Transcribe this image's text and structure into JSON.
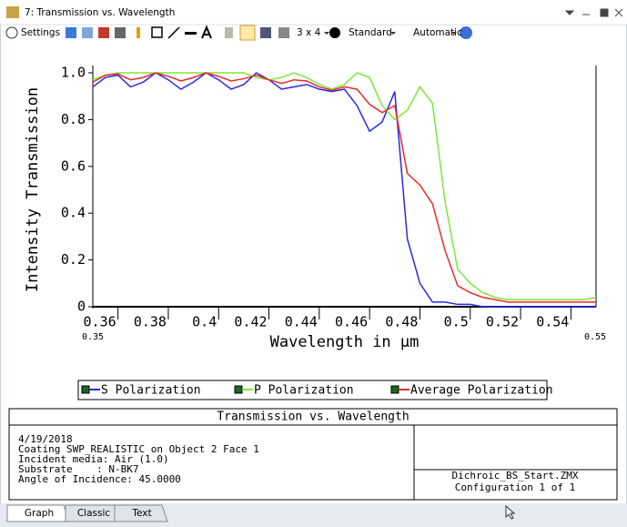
{
  "window": {
    "title": "7: Transmission vs. Wavelength"
  },
  "toolbar": {
    "settings": "Settings",
    "layout": "3 x 4",
    "style": "Standard",
    "scale": "Automatic"
  },
  "chart_data": {
    "type": "line",
    "title": "Transmission vs. Wavelength",
    "x_label": "Wavelength in µm",
    "y_label": "Intensity Transmission",
    "x": [
      0.35,
      0.355,
      0.36,
      0.365,
      0.37,
      0.375,
      0.38,
      0.385,
      0.39,
      0.395,
      0.4,
      0.405,
      0.41,
      0.415,
      0.42,
      0.425,
      0.43,
      0.435,
      0.44,
      0.445,
      0.45,
      0.455,
      0.46,
      0.465,
      0.47,
      0.475,
      0.48,
      0.485,
      0.49,
      0.495,
      0.5,
      0.505,
      0.51,
      0.515,
      0.52,
      0.525,
      0.53,
      0.535,
      0.54,
      0.545,
      0.55
    ],
    "series": [
      {
        "name": "S Polarization",
        "color": "#2a2ae8",
        "values": [
          0.94,
          0.98,
          0.99,
          0.94,
          0.96,
          1.0,
          0.97,
          0.93,
          0.96,
          1.0,
          0.97,
          0.93,
          0.95,
          1.0,
          0.97,
          0.93,
          0.94,
          0.95,
          0.93,
          0.92,
          0.93,
          0.86,
          0.75,
          0.79,
          0.92,
          0.29,
          0.1,
          0.02,
          0.02,
          0.01,
          0.01,
          0,
          0,
          0,
          0,
          0,
          0,
          0,
          0,
          0,
          0
        ]
      },
      {
        "name": "P Polarization",
        "color": "#7be83a",
        "values": [
          0.97,
          0.99,
          1.0,
          1.0,
          1.0,
          1.0,
          1.0,
          1.0,
          1.0,
          1.0,
          1.0,
          1.0,
          1.0,
          0.98,
          0.97,
          0.98,
          1.0,
          0.98,
          0.95,
          0.93,
          0.95,
          1.0,
          0.98,
          0.86,
          0.8,
          0.84,
          0.94,
          0.87,
          0.45,
          0.16,
          0.1,
          0.06,
          0.04,
          0.03,
          0.03,
          0.03,
          0.03,
          0.03,
          0.03,
          0.03,
          0.04
        ]
      },
      {
        "name": "Average Polarization",
        "color": "#e82a2a",
        "values": [
          0.96,
          0.99,
          0.995,
          0.97,
          0.98,
          1.0,
          0.985,
          0.965,
          0.98,
          1.0,
          0.985,
          0.965,
          0.975,
          0.99,
          0.97,
          0.955,
          0.97,
          0.965,
          0.94,
          0.925,
          0.94,
          0.93,
          0.865,
          0.83,
          0.86,
          0.57,
          0.52,
          0.44,
          0.24,
          0.09,
          0.06,
          0.04,
          0.03,
          0.02,
          0.02,
          0.02,
          0.02,
          0.02,
          0.02,
          0.02,
          0.02
        ]
      }
    ],
    "xlim": [
      0.35,
      0.55
    ],
    "xticks": [
      0.36,
      0.38,
      0.4,
      0.42,
      0.44,
      0.46,
      0.48,
      0.5,
      0.52,
      0.54
    ],
    "ylim": [
      0,
      1
    ],
    "yticks": [
      0,
      0.2,
      0.4,
      0.6,
      0.8,
      {
        "value": 1,
        "label": "1.0"
      }
    ]
  },
  "info": {
    "lines": [
      "4/19/2018",
      "Coating SWP_REALISTIC on Object 2 Face 1",
      "Incident media: Air (1.0)",
      "Substrate    : N-BK7",
      "Angle of Incidence: 45.0000"
    ],
    "file": "Dichroic_BS_Start.ZMX",
    "config": "Configuration 1 of 1"
  },
  "tabs": [
    "Graph",
    "Classic",
    "Text"
  ]
}
